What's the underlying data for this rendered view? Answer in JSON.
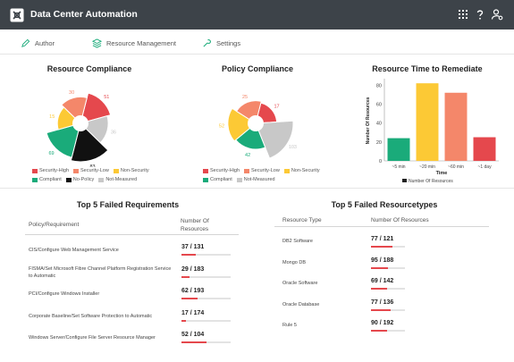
{
  "app": {
    "title": "Data Center Automation"
  },
  "nav": {
    "items": [
      {
        "label": "Author",
        "icon": "pen-icon"
      },
      {
        "label": "Resource Management",
        "icon": "layers-icon"
      },
      {
        "label": "Settings",
        "icon": "wrench-icon"
      }
    ]
  },
  "colors": {
    "security_high": "#e5484d",
    "security_low": "#f4876a",
    "non_security": "#fcc935",
    "compliant": "#1aab7a",
    "no_policy": "#111111",
    "not_measured": "#c8c8c8",
    "bar_teal": "#1aab7a"
  },
  "resource_compliance": {
    "title": "Resource Compliance",
    "legend": {
      "security_high": "Security-High",
      "security_low": "Security-Low",
      "non_security": "Non-Security",
      "compliant": "Compliant",
      "no_policy": "No-Policy",
      "not_measured": "Not-Measured"
    }
  },
  "policy_compliance": {
    "title": "Policy Compliance",
    "legend": {
      "security_high": "Security-High",
      "security_low": "Security-Low",
      "non_security": "Non-Security",
      "compliant": "Compliant",
      "not_measured": "Not-Measured"
    }
  },
  "chart_data": [
    {
      "type": "pie",
      "title": "Resource Compliance",
      "slices": [
        {
          "name": "Security-High",
          "value": 51
        },
        {
          "name": "Not-Measured",
          "value": 36
        },
        {
          "name": "No-Policy",
          "value": 83
        },
        {
          "name": "Compliant",
          "value": 69
        },
        {
          "name": "Non-Security",
          "value": 15
        },
        {
          "name": "Security-Low",
          "value": 30
        }
      ]
    },
    {
      "type": "pie",
      "title": "Policy Compliance",
      "slices": [
        {
          "name": "Security-High",
          "value": 17
        },
        {
          "name": "Not-Measured",
          "value": 103
        },
        {
          "name": "Compliant",
          "value": 42
        },
        {
          "name": "Non-Security",
          "value": 52
        },
        {
          "name": "Security-Low",
          "value": 25
        }
      ]
    },
    {
      "type": "bar",
      "title": "Resource Time to Remediate",
      "categories": [
        "~5 min",
        "~20 min",
        "~60 min",
        "~1 day"
      ],
      "values": [
        24,
        82,
        72,
        25
      ],
      "colors": [
        "#1aab7a",
        "#fcc935",
        "#f4876a",
        "#e5484d"
      ],
      "xlabel": "Time",
      "ylabel": "Number Of Resources",
      "ylim": [
        0,
        85
      ],
      "yticks": [
        0,
        20,
        40,
        60,
        80
      ],
      "legend": "Number Of Resources"
    }
  ],
  "requirements": {
    "title": "Top 5 Failed Requirements",
    "col_policy": "Policy/Requirement",
    "col_count": "Number Of Resources",
    "rows": [
      {
        "name": "CIS/Configure Web Management Service",
        "failed": 37,
        "total": 131,
        "label": "37 / 131"
      },
      {
        "name": "FISMA/Set Microsoft Fibre Channel Platform Registration Service to Automatic",
        "failed": 29,
        "total": 183,
        "label": "29 / 183"
      },
      {
        "name": "PCI/Configure Windows Installer",
        "failed": 62,
        "total": 193,
        "label": "62 / 193"
      },
      {
        "name": "Corporate Baseline/Set Software Protection to Automatic",
        "failed": 17,
        "total": 174,
        "label": "17 / 174"
      },
      {
        "name": "Windows Server/Configure File Server Resource Manager",
        "failed": 52,
        "total": 104,
        "label": "52 / 104"
      }
    ]
  },
  "resourcetypes": {
    "title": "Top 5 Failed Resourcetypes",
    "col_type": "Resource Type",
    "col_count": "Number Of Resources",
    "rows": [
      {
        "name": "DB2 Software",
        "failed": 77,
        "total": 121,
        "label": "77 / 121"
      },
      {
        "name": "Mongo DB",
        "failed": 95,
        "total": 188,
        "label": "95 / 188"
      },
      {
        "name": "Oracle Software",
        "failed": 69,
        "total": 142,
        "label": "69 / 142"
      },
      {
        "name": "Oracle Database",
        "failed": 77,
        "total": 136,
        "label": "77 / 136"
      },
      {
        "name": "Rule 5",
        "failed": 90,
        "total": 192,
        "label": "90 / 192"
      }
    ]
  }
}
